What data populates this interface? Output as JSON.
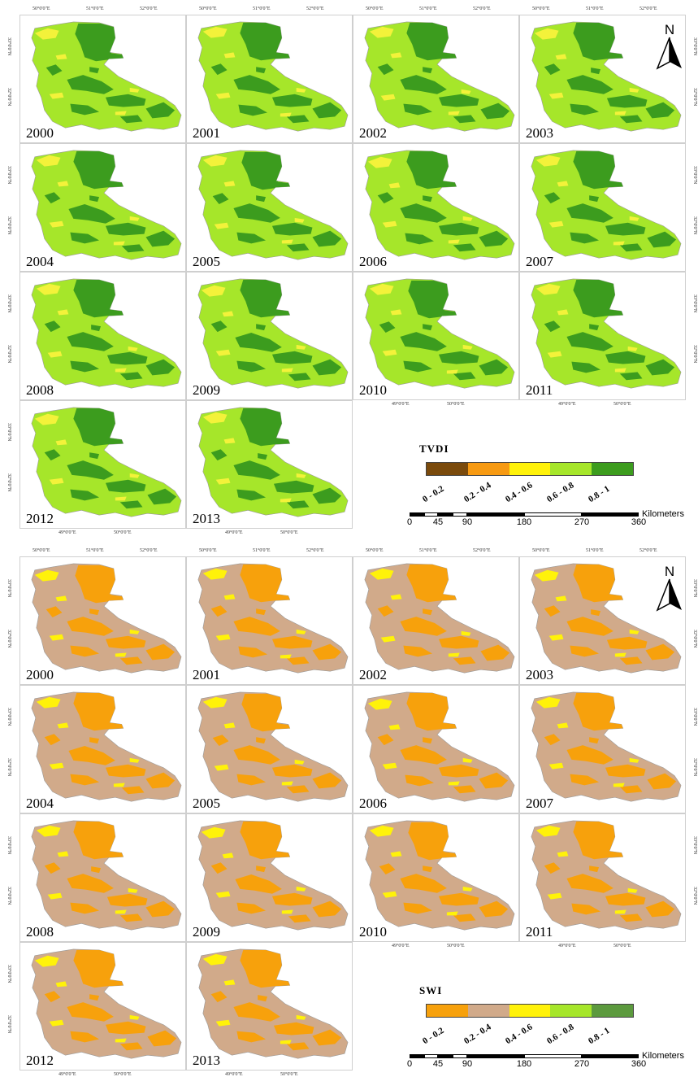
{
  "figures": [
    {
      "legend_title": "TVDI",
      "classes": [
        "0 - 0.2",
        "0.2 - 0.4",
        "0.4 - 0.6",
        "0.6 - 0.8",
        "0.8 - 1"
      ],
      "class_colors": [
        "#7a4a0c",
        "#f79a12",
        "#fff20a",
        "#a6e62a",
        "#3c9c1e"
      ],
      "map_colors": {
        "base": "#a6e62a",
        "high": "#3c9c1e",
        "low": "#f3f23a"
      },
      "years": [
        "2000",
        "2001",
        "2002",
        "2003",
        "2004",
        "2005",
        "2006",
        "2007",
        "2008",
        "2009",
        "2010",
        "2011",
        "2012",
        "2013"
      ],
      "top_axis": [
        "50°0'0\"E",
        "51°0'0\"E",
        "52°0'0\"E"
      ],
      "bottom_axis": [
        "49°0'0\"E",
        "50°0'0\"E"
      ],
      "side_axis": [
        "33°0'0\"N",
        "32°0'0\"N"
      ],
      "scale_ticks": [
        "0",
        "45",
        "90",
        "180",
        "270",
        "360"
      ],
      "scale_unit": "Kilometers",
      "north": "N"
    },
    {
      "legend_title": "SWI",
      "classes": [
        "0 - 0.2",
        "0.2 - 0.4",
        "0.4 - 0.6",
        "0.6 - 0.8",
        "0.8 - 1"
      ],
      "class_colors": [
        "#f7a10c",
        "#d1aa8a",
        "#fff20a",
        "#a6e62a",
        "#5c9a3e"
      ],
      "map_colors": {
        "base": "#d1aa8a",
        "high": "#f7a10c",
        "low": "#fff20a"
      },
      "years": [
        "2000",
        "2001",
        "2002",
        "2003",
        "2004",
        "2005",
        "2006",
        "2007",
        "2008",
        "2009",
        "2010",
        "2011",
        "2012",
        "2013"
      ],
      "top_axis": [
        "50°0'0\"E",
        "51°0'0\"E",
        "52°0'0\"E"
      ],
      "bottom_axis": [
        "49°0'0\"E",
        "50°0'0\"E"
      ],
      "side_axis": [
        "33°0'0\"N",
        "32°0'0\"N"
      ],
      "scale_ticks": [
        "0",
        "45",
        "90",
        "180",
        "270",
        "360"
      ],
      "scale_unit": "Kilometers",
      "north": "N"
    }
  ]
}
